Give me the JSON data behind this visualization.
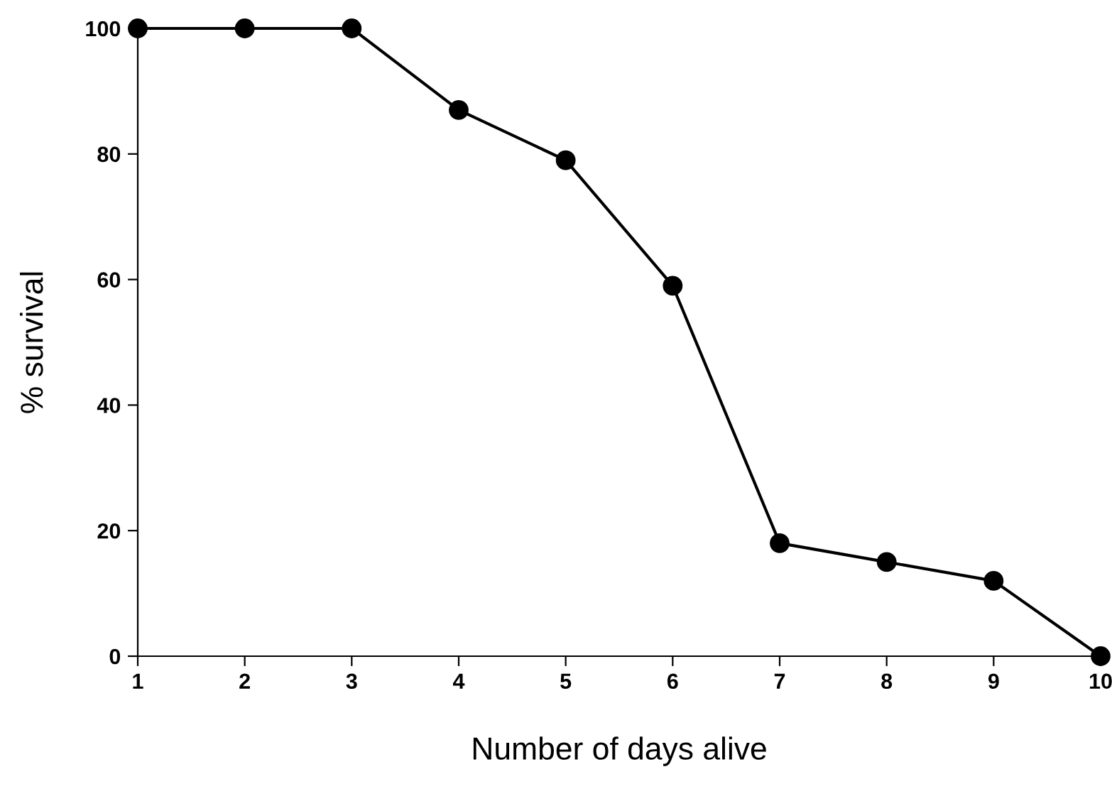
{
  "chart_data": {
    "type": "line",
    "xlabel": "Number of days alive",
    "ylabel": "% survival",
    "x": [
      1,
      2,
      3,
      4,
      5,
      6,
      7,
      8,
      9,
      10
    ],
    "series": [
      {
        "color": "#000000",
        "values": [
          100,
          100,
          100,
          87,
          79,
          59,
          18,
          15,
          12,
          0
        ]
      }
    ],
    "xlim": [
      1,
      10
    ],
    "xticks": [
      1,
      2,
      3,
      4,
      5,
      6,
      7,
      8,
      9,
      10
    ],
    "ylim": [
      0,
      100
    ],
    "yticks": [
      0,
      20,
      40,
      60,
      80,
      100
    ],
    "marker": "circle",
    "line_style": "solid",
    "grid": false,
    "legend": false
  }
}
